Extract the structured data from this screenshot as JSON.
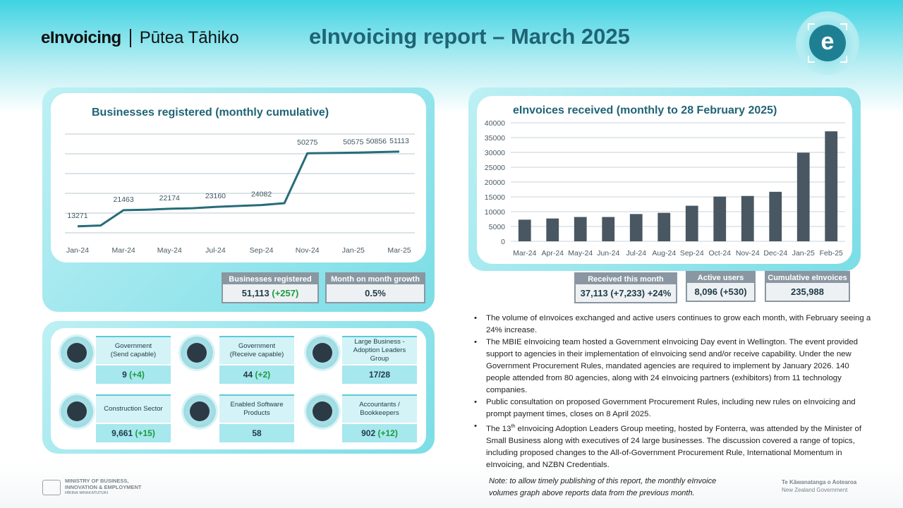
{
  "header": {
    "logo_text": "eInvoicing",
    "logo_maori": "Pūtea Tāhiko",
    "title": "eInvoicing report – March 2025",
    "badge_letter": "e"
  },
  "left_chart": {
    "title": "Businesses registered (monthly cumulative)",
    "stats": [
      {
        "label": "Businesses registered",
        "value": "51,113",
        "change": "(+257)"
      },
      {
        "label": "Month on month growth",
        "value": "0.5%"
      }
    ]
  },
  "right_chart": {
    "title": "eInvoices received (monthly to 28 February 2025)",
    "stats": [
      {
        "label": "Received this month",
        "value": "37,113 (+7,233) +24%"
      },
      {
        "label": "Active users",
        "value": "8,096",
        "change": "(+530)"
      },
      {
        "label": "Cumulative eInvoices",
        "value": "235,988"
      }
    ]
  },
  "tiles": [
    {
      "icon": "government-building-icon",
      "label": "Government\n(Send capable)",
      "value": "9",
      "change": "(+4)"
    },
    {
      "icon": "government-building-icon",
      "label": "Government\n(Receive capable)",
      "value": "44",
      "change": "(+2)"
    },
    {
      "icon": "office-building-icon",
      "label": "Large Business - Adoption Leaders Group",
      "value": "17/28",
      "change": ""
    },
    {
      "icon": "magnifier-person-icon",
      "label": "Construction Sector",
      "value": "9,661",
      "change": "(+15)"
    },
    {
      "icon": "gear-icon",
      "label": "Enabled Software Products",
      "value": "58",
      "change": ""
    },
    {
      "icon": "accountant-icon",
      "label": "Accountants / Bookkeepers",
      "value": "902",
      "change": "(+12)"
    }
  ],
  "bullets": [
    "The volume of eInvoices exchanged and active users continues to grow each month, with February seeing a 24% increase.",
    "The MBIE eInvoicing team hosted a Government eInvoicing Day event in Wellington. The event provided support to agencies in their implementation of eInvoicing send and/or receive capability.  Under the new Government Procurement Rules, mandated agencies are required to implement by January 2026. 140 people attended from 80 agencies, along with 24 eInvoicing partners (exhibitors) from 11 technology companies.",
    "Public consultation on proposed Government Procurement Rules, including new rules on eInvoicing and prompt payment times, closes on 8 April 2025.",
    {
      "pre": "The 13",
      "sup": "th",
      "post": " eInvoicing Adoption Leaders Group meeting, hosted by Fonterra, was attended by the Minister of Small Business along with executives of 24 large businesses. The discussion covered a range of topics, including proposed changes to the All-of-Government Procurement Rule, International Momentum in eInvoicing, and NZBN Credentials."
    }
  ],
  "footer": {
    "note_line1": "Note: to allow timely publishing of this report, the monthly eInvoice",
    "note_line2": "volumes graph above reports data from the previous month.",
    "mbie_line1": "MINISTRY OF BUSINESS,",
    "mbie_line2": "INNOVATION & EMPLOYMENT",
    "mbie_line3": "HĪKINA WHAKATUTUKI",
    "gov_line1": "Te Kāwanatanga o Aotearoa",
    "gov_line2": "New Zealand Government"
  },
  "chart_data": [
    {
      "type": "line",
      "title": "Businesses registered (monthly cumulative)",
      "x": [
        "Jan-24",
        "Feb-24",
        "Mar-24",
        "Apr-24",
        "May-24",
        "Jun-24",
        "Jul-24",
        "Aug-24",
        "Sep-24",
        "Oct-24",
        "Nov-24",
        "Dec-24",
        "Jan-25",
        "Feb-25",
        "Mar-25"
      ],
      "tick_labels": [
        "Jan-24",
        "Mar-24",
        "May-24",
        "Jul-24",
        "Sep-24",
        "Nov-24",
        "Jan-25",
        "Mar-25"
      ],
      "values": [
        13271,
        13700,
        21463,
        21700,
        22174,
        22450,
        23160,
        23600,
        24082,
        25000,
        50275,
        50400,
        50575,
        50856,
        51113
      ],
      "data_labels": [
        {
          "x": "Jan-24",
          "text": "13271"
        },
        {
          "x": "Mar-24",
          "text": "21463"
        },
        {
          "x": "May-24",
          "text": "22174"
        },
        {
          "x": "Jul-24",
          "text": "23160"
        },
        {
          "x": "Sep-24",
          "text": "24082"
        },
        {
          "x": "Nov-24",
          "text": "50275"
        },
        {
          "x": "Jan-25",
          "text": "50575"
        },
        {
          "x": "Feb-25",
          "text": "50856"
        },
        {
          "x": "Mar-25",
          "text": "51113"
        }
      ],
      "ylim": [
        10000,
        60000
      ],
      "grid": true,
      "color": "#276c78"
    },
    {
      "type": "bar",
      "title": "eInvoices received (monthly to 28 February 2025)",
      "categories": [
        "Mar-24",
        "Apr-24",
        "May-24",
        "Jun-24",
        "Jul-24",
        "Aug-24",
        "Sep-24",
        "Oct-24",
        "Nov-24",
        "Dec-24",
        "Jan-25",
        "Feb-25"
      ],
      "values": [
        7300,
        7700,
        8200,
        8200,
        9200,
        9600,
        12000,
        15100,
        15300,
        16700,
        29900,
        37113
      ],
      "yticks": [
        0,
        5000,
        10000,
        15000,
        20000,
        25000,
        30000,
        35000,
        40000
      ],
      "ylim": [
        0,
        40000
      ],
      "grid": true,
      "color": "#485762"
    }
  ]
}
